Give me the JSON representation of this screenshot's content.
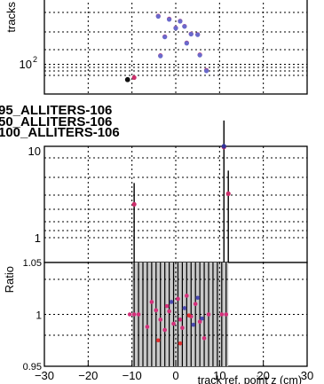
{
  "chart_data": [
    {
      "type": "scatter",
      "ylabel": "tracks",
      "yscale": "log",
      "tick_labels_y": [
        "10"
      ],
      "tick_exponents_y": [
        "2"
      ],
      "grid": true,
      "series": [
        {
          "color": "#cc2f6b",
          "x": [
            -4.0,
            -1.5,
            1.0,
            2.0,
            3.5,
            5.0,
            -2.5,
            0.0,
            2.5,
            5.5,
            -3.5,
            7.0,
            -9.5
          ],
          "y": [
            260,
            245,
            235,
            212,
            182,
            180,
            172,
            205,
            152,
            120,
            118,
            88,
            76
          ]
        },
        {
          "color": "#6a6acc",
          "x": [
            -4.0,
            -1.5,
            1.0,
            2.0,
            3.5,
            5.0,
            -2.5,
            0.0,
            2.5,
            5.5,
            -3.5,
            7.0,
            -11.0
          ],
          "y": [
            258,
            243,
            234,
            211,
            181,
            179,
            171,
            204,
            151,
            119,
            117,
            87,
            73
          ]
        },
        {
          "color": "#111111",
          "x": [
            -11.0
          ],
          "y": [
            73
          ]
        }
      ]
    },
    {
      "type": "scatter",
      "yscale": "log",
      "tick_labels_y": [
        "10",
        "1"
      ],
      "grid": true,
      "legend": [
        "95_ALLITERS-106",
        "50_ALLITERS-106",
        "100_ALLITERS-106"
      ],
      "series": [
        {
          "color": "#cc2f6b",
          "x": [
            -9.5,
            11.0,
            12.0
          ],
          "y": [
            2.3,
            9.6,
            3.0
          ],
          "yerr": [
            1.2,
            1.5,
            1.3
          ]
        },
        {
          "color": "#333399",
          "x": [
            11.0
          ],
          "y": [
            9.8
          ]
        }
      ]
    },
    {
      "type": "scatter",
      "ylabel": "Ratio",
      "xlabel": "track ref. point z (cm)",
      "ylim": [
        0.95,
        1.05
      ],
      "xlim": [
        -30,
        30
      ],
      "tick_labels_y": [
        "1.05",
        "1",
        "0.95"
      ],
      "tick_labels_x": [
        "−30",
        "−20",
        "−10",
        "0",
        "10",
        "20",
        "30"
      ],
      "grid": true,
      "band": {
        "x_from": -10,
        "x_to": 12,
        "color": "#c8c8c8"
      },
      "series": [
        {
          "color": "#d4307a",
          "x": [
            -10.5,
            -9.5,
            -8.5,
            -6.5,
            -5.5,
            -4.5,
            -3.5,
            -2.5,
            -2.0,
            -1.5,
            -0.5,
            0.5,
            1.0,
            1.5,
            2.5,
            3.5,
            4.5,
            5.5,
            6.5,
            7.5,
            10.5,
            11.5
          ],
          "y": [
            1.0,
            1.0,
            1.0,
            0.988,
            1.012,
            1.004,
            0.995,
            0.985,
            1.008,
            1.003,
            0.991,
            1.015,
            0.995,
            0.987,
            1.018,
            0.998,
            1.01,
            0.993,
            0.977,
            1.0,
            1.0,
            1.0
          ]
        },
        {
          "color": "#e03030",
          "x": [
            -4.0,
            1.0,
            3.0
          ],
          "y": [
            0.975,
            0.972,
            0.999
          ]
        },
        {
          "color": "#4a4ab0",
          "x": [
            -1.0,
            2.0,
            4.0,
            5.0,
            6.0
          ],
          "y": [
            1.012,
            1.006,
            0.99,
            1.016,
            0.996
          ]
        }
      ]
    }
  ]
}
